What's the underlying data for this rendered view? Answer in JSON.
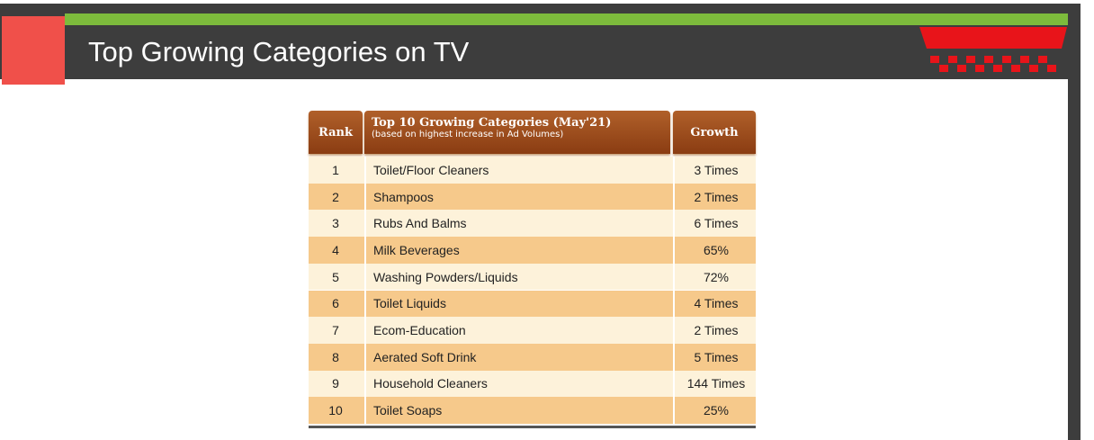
{
  "header": {
    "title": "Top Growing Categories on TV"
  },
  "table": {
    "headers": [
      "Rank",
      "Top 10 Growing Categories (May'21)",
      "Growth"
    ],
    "header_note": "(based on highest increase in Ad Volumes)",
    "rows": [
      [
        "1",
        "Toilet/Floor Cleaners",
        "3 Times"
      ],
      [
        "2",
        "Shampoos",
        "2 Times"
      ],
      [
        "3",
        "Rubs And Balms",
        "6 Times"
      ],
      [
        "4",
        "Milk Beverages",
        "65%"
      ],
      [
        "5",
        "Washing Powders/Liquids",
        "72%"
      ],
      [
        "6",
        "Toilet Liquids",
        "4 Times"
      ],
      [
        "7",
        "Ecom-Education",
        "2 Times"
      ],
      [
        "8",
        "Aerated Soft Drink",
        "5 Times"
      ],
      [
        "9",
        "Household Cleaners",
        "144 Times"
      ],
      [
        "10",
        "Toilet Soaps",
        "25%"
      ]
    ]
  }
}
